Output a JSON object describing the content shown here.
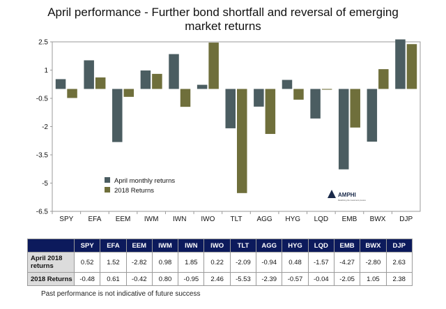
{
  "chart_data": {
    "type": "bar",
    "title": [
      "April performance - Further bond shortfall and reversal of emerging",
      "market returns"
    ],
    "categories": [
      "SPY",
      "EFA",
      "EEM",
      "IWM",
      "IWN",
      "IWO",
      "TLT",
      "AGG",
      "HYG",
      "LQD",
      "EMB",
      "BWX",
      "DJP"
    ],
    "series": [
      {
        "name": "April monthly returns",
        "color": "#4b5d61",
        "values": [
          0.52,
          1.52,
          -2.82,
          0.98,
          1.85,
          0.22,
          -2.09,
          -0.94,
          0.48,
          -1.57,
          -4.27,
          -2.8,
          2.63
        ]
      },
      {
        "name": "2018 Returns",
        "color": "#6f6f3b",
        "values": [
          -0.48,
          0.61,
          -0.42,
          0.8,
          -0.95,
          2.46,
          -5.53,
          -2.39,
          -0.57,
          -0.04,
          -2.05,
          1.05,
          2.38
        ]
      }
    ],
    "yticks": [
      "2.5",
      "1",
      "-0.5",
      "-2",
      "-3.5",
      "-5",
      "-6.5"
    ],
    "ylim": [
      -6.5,
      2.5
    ],
    "legend_position": "lower-left",
    "grid": false
  },
  "logo": {
    "name": "AMPHI",
    "tagline": "Redefining the investment process"
  },
  "table": {
    "row_headers": [
      "April 2018 returns",
      "2018 Returns"
    ],
    "rows": [
      [
        "0.52",
        "1.52",
        "-2.82",
        "0.98",
        "1.85",
        "0.22",
        "-2.09",
        "-0.94",
        "0.48",
        "-1.57",
        "-4.27",
        "-2.80",
        "2.63"
      ],
      [
        "-0.48",
        "0.61",
        "-0.42",
        "0.80",
        "-0.95",
        "2.46",
        "-5.53",
        "-2.39",
        "-0.57",
        "-0.04",
        "-2.05",
        "1.05",
        "2.38"
      ]
    ]
  },
  "footnote": "Past performance is not indicative of future success"
}
